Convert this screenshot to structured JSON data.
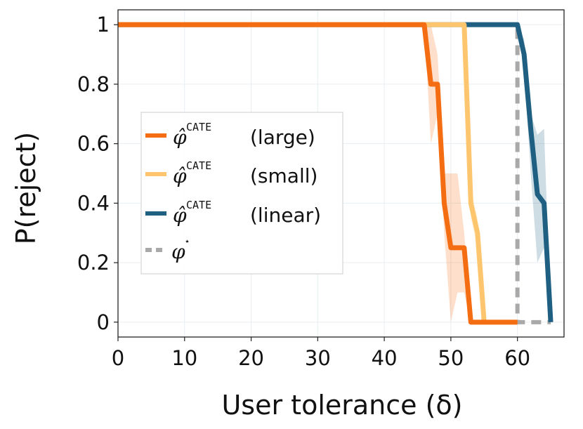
{
  "chart_data": {
    "type": "line",
    "title": "",
    "xlabel": "User tolerance (δ)",
    "ylabel": "P(reject)",
    "xlim": [
      0,
      67
    ],
    "ylim": [
      -0.05,
      1.05
    ],
    "xticks": [
      0,
      10,
      20,
      30,
      40,
      50,
      60
    ],
    "xtick_labels": [
      "0",
      "10",
      "20",
      "30",
      "40",
      "50",
      "60"
    ],
    "yticks": [
      0,
      0.2,
      0.4,
      0.6,
      0.8,
      1
    ],
    "ytick_labels": [
      "0",
      "0.2",
      "0.4",
      "0.6",
      "0.8",
      "1"
    ],
    "grid": true,
    "legend_placement": "center-left",
    "series": [
      {
        "name": "large",
        "legend_phi": "φ̂",
        "legend_sup": "CATE",
        "legend_label": "(large)",
        "color": "#f46d12",
        "style": "solid",
        "x": [
          0,
          46,
          47,
          48,
          49,
          50,
          51,
          52,
          53,
          54,
          55,
          60
        ],
        "y": [
          1,
          1,
          0.8,
          0.8,
          0.4,
          0.25,
          0.25,
          0.25,
          0,
          0,
          0,
          0
        ],
        "band_upper": [
          1,
          1,
          1,
          0.9,
          0.5,
          0.5,
          0.5,
          0.3,
          0,
          0,
          0,
          0
        ],
        "band_lower": [
          1,
          1,
          0.6,
          0.7,
          0.3,
          0.0,
          0.1,
          0.1,
          0,
          0,
          0,
          0
        ]
      },
      {
        "name": "small",
        "legend_phi": "φ̂",
        "legend_sup": "CATE",
        "legend_label": "(small)",
        "color": "#fdc66e",
        "style": "solid",
        "x": [
          0,
          52,
          53,
          54,
          55
        ],
        "y": [
          1,
          1,
          0.4,
          0.3,
          0
        ],
        "band_upper": [
          1,
          1,
          0.45,
          0.35,
          0
        ],
        "band_lower": [
          1,
          1,
          0.35,
          0.25,
          0
        ]
      },
      {
        "name": "linear",
        "legend_phi": "φ̂",
        "legend_sup": "CATE",
        "legend_label": "(linear)",
        "color": "#1f5f82",
        "style": "solid",
        "x": [
          0,
          60,
          61,
          62,
          63,
          64,
          65
        ],
        "y": [
          1,
          1,
          0.9,
          0.65,
          0.43,
          0.4,
          0
        ],
        "band_upper": [
          1,
          1,
          0.95,
          0.7,
          0.63,
          0.65,
          0
        ],
        "band_lower": [
          1,
          1,
          0.85,
          0.5,
          0.2,
          0.25,
          0
        ]
      },
      {
        "name": "phi_star",
        "legend_phi": "φ",
        "legend_sup": "⋆",
        "legend_label": "",
        "color": "#a9a9a9",
        "style": "dashed",
        "x": [
          0,
          60,
          60,
          65
        ],
        "y": [
          1,
          1,
          0,
          0
        ]
      }
    ]
  }
}
